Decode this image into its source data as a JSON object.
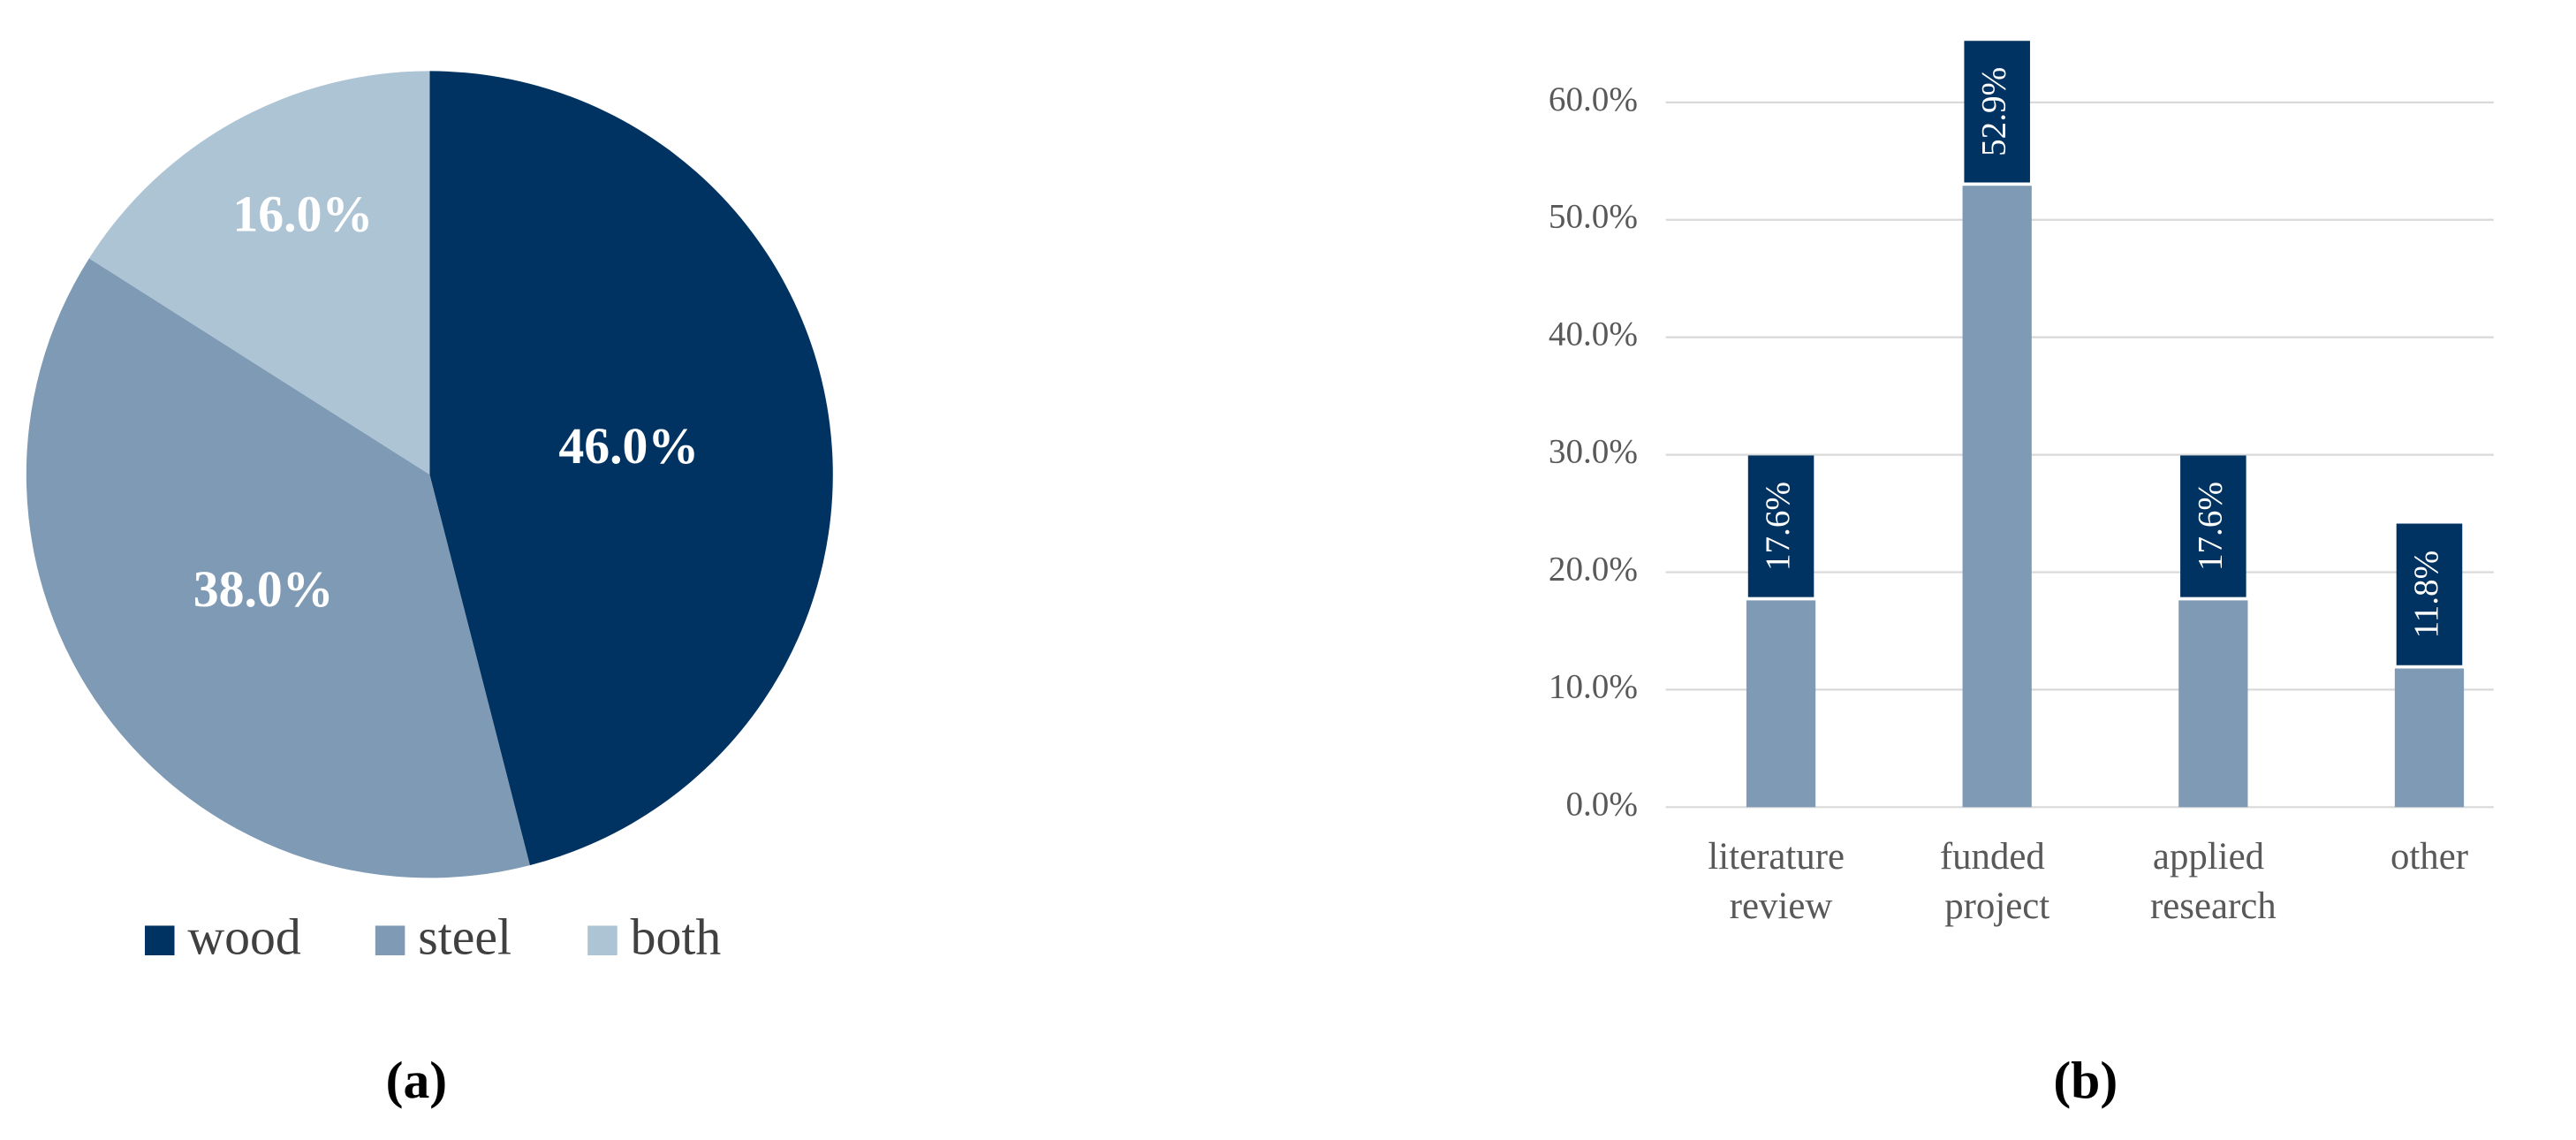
{
  "chart_data": [
    {
      "type": "pie",
      "caption": "(a)",
      "categories": [
        "wood",
        "steel",
        "both"
      ],
      "values": [
        46.0,
        38.0,
        16.0
      ],
      "value_labels": [
        "46.0%",
        "38.0%",
        "16.0%"
      ],
      "colors": [
        "#003361",
        "#7f9ab4",
        "#adc4d5"
      ],
      "legend": "bottom"
    },
    {
      "type": "bar",
      "caption": "(b)",
      "categories": [
        "literature review",
        "funded project",
        "applied research",
        "other"
      ],
      "values": [
        17.6,
        52.9,
        17.6,
        11.8
      ],
      "value_labels": [
        "17.6%",
        "52.9%",
        "17.6%",
        "11.8%"
      ],
      "color": "#7f9ab4",
      "label_color": "#003361",
      "ylim": [
        0,
        60
      ],
      "yticks": [
        {
          "value": 0,
          "label": "0.0%"
        },
        {
          "value": 10,
          "label": "10.0%"
        },
        {
          "value": 20,
          "label": "20.0%"
        },
        {
          "value": 30,
          "label": "30.0%"
        },
        {
          "value": 40,
          "label": "40.0%"
        },
        {
          "value": 50,
          "label": "50.0%"
        },
        {
          "value": 60,
          "label": "60.0%"
        }
      ],
      "grid": true
    }
  ]
}
